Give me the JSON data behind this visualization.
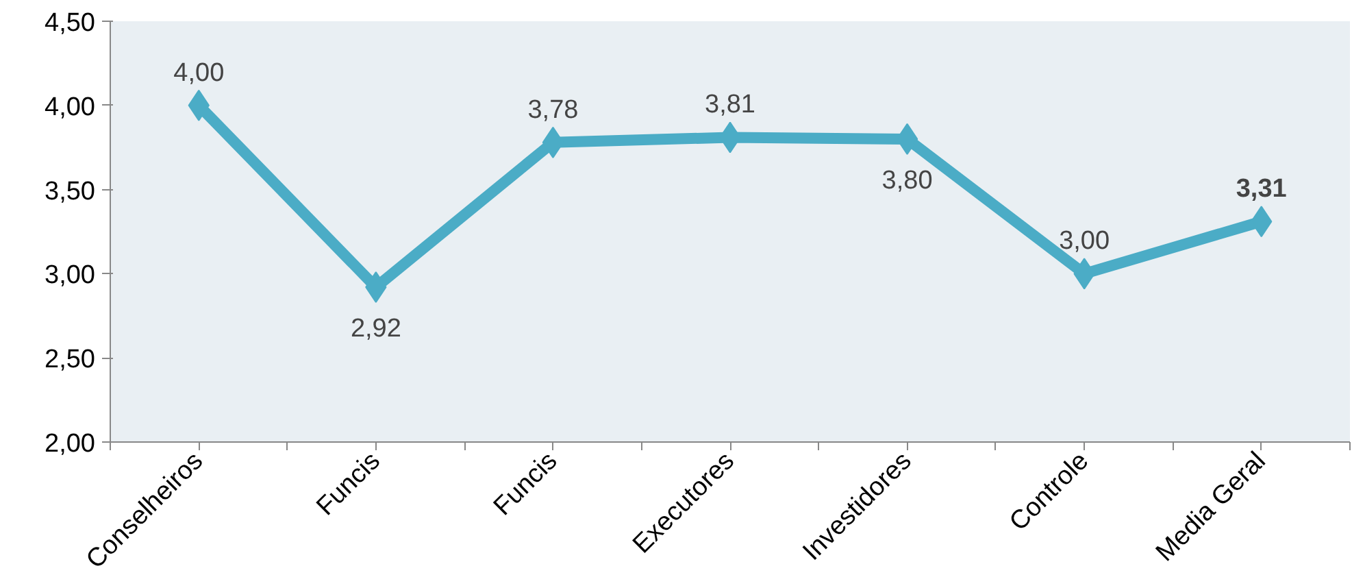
{
  "chart_data": {
    "type": "line",
    "categories": [
      "Conselheiros",
      "Funcis",
      "Funcis",
      "Executores",
      "Investidores",
      "Controle",
      "Media Geral"
    ],
    "series": [
      {
        "color": "#4bacc6",
        "values": [
          4.0,
          2.92,
          3.78,
          3.81,
          3.8,
          3.0,
          3.31
        ]
      }
    ],
    "ylim": [
      2.0,
      4.5
    ],
    "yticks": [
      {
        "value": 2.0,
        "label": "2,00"
      },
      {
        "value": 2.5,
        "label": "2,50"
      },
      {
        "value": 3.0,
        "label": "3,00"
      },
      {
        "value": 3.5,
        "label": "3,50"
      },
      {
        "value": 4.0,
        "label": "4,00"
      },
      {
        "value": 4.5,
        "label": "4,50"
      }
    ],
    "value_labels": [
      "4,00",
      "2,92",
      "3,78",
      "3,81",
      "3,80",
      "3,00",
      "3,31"
    ],
    "marker": "diamond",
    "line_style": "solid",
    "grid": false
  }
}
